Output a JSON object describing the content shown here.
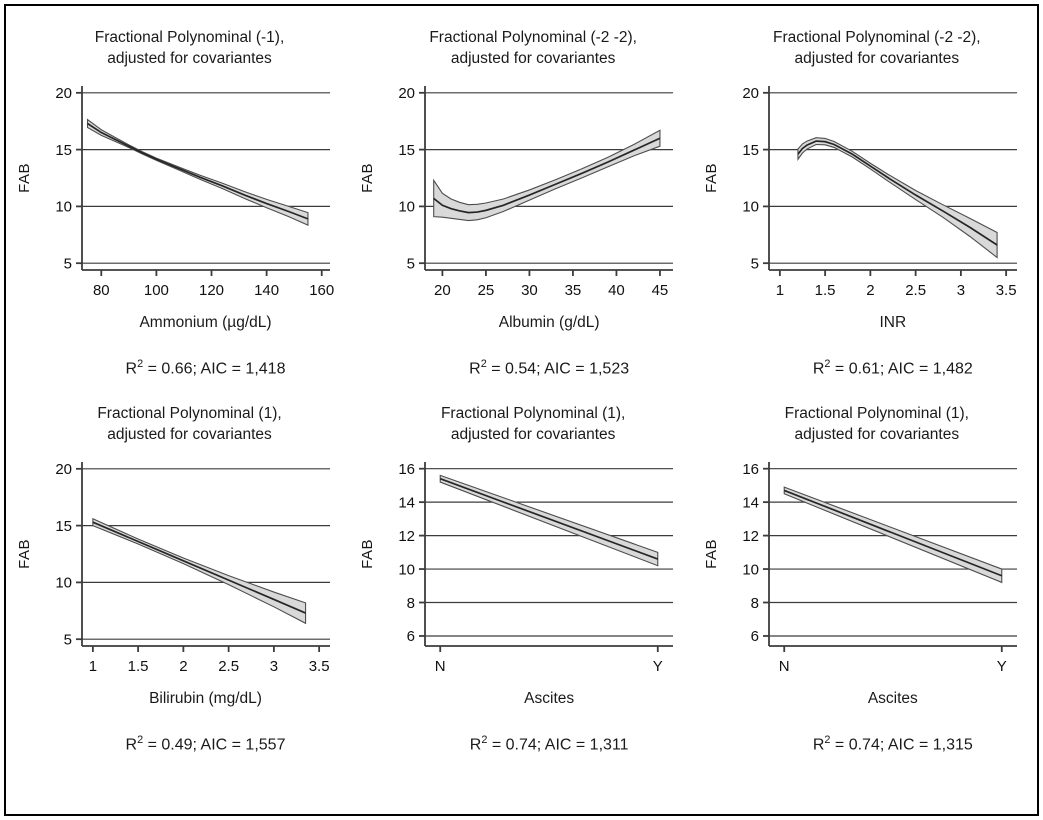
{
  "figure": {
    "background": "#ffffff",
    "frame_color": "#000000",
    "band_fill": "#d9d9d9",
    "band_edge": "#4d4d4d",
    "line_color": "#262626",
    "grid_color": "#3c3c3c",
    "text_color": "#111111"
  },
  "chart_data": [
    {
      "type": "area",
      "title": "Fractional Polynominal (-1), adjusted for covariantes",
      "title_line1": "Fractional Polynominal (-1),",
      "title_line2": "adjusted for covariantes",
      "ylabel": "FAB",
      "xlabel": "Ammonium (µg/dL)",
      "annotation": {
        "r": "R",
        "exp": "2",
        "rest": " = 0.66; AIC = 1,418"
      },
      "legend": "none",
      "grid": true,
      "xlim": [
        73,
        163
      ],
      "ylim": [
        4.4,
        20.6
      ],
      "xticks": [
        80,
        100,
        120,
        140,
        160
      ],
      "xtick_labels": [
        "80",
        "100",
        "120",
        "140",
        "160"
      ],
      "yticks": [
        5,
        10,
        15,
        20
      ],
      "band_fill": "#d9d9d9",
      "series": [
        {
          "name": "fit",
          "x": [
            75,
            80,
            85,
            90,
            95,
            100,
            108,
            116,
            124,
            132,
            140,
            148,
            155
          ],
          "y": [
            17.3,
            16.5,
            15.9,
            15.3,
            14.7,
            14.15,
            13.35,
            12.55,
            11.8,
            11.0,
            10.25,
            9.55,
            8.9
          ]
        },
        {
          "name": "ci_lower",
          "x": [
            75,
            80,
            85,
            90,
            95,
            100,
            108,
            116,
            124,
            132,
            140,
            148,
            155
          ],
          "y": [
            16.95,
            16.25,
            15.72,
            15.18,
            14.6,
            14.05,
            13.22,
            12.37,
            11.56,
            10.7,
            9.88,
            9.1,
            8.35
          ]
        },
        {
          "name": "ci_upper",
          "x": [
            75,
            80,
            85,
            90,
            95,
            100,
            108,
            116,
            124,
            132,
            140,
            148,
            155
          ],
          "y": [
            17.65,
            16.75,
            16.08,
            15.42,
            14.8,
            14.25,
            13.48,
            12.73,
            12.04,
            11.3,
            10.62,
            10.0,
            9.45
          ]
        }
      ]
    },
    {
      "type": "area",
      "title": "Fractional Polynominal (-2 -2), adjusted for covariantes",
      "title_line1": "Fractional Polynominal (-2 -2),",
      "title_line2": "adjusted for covariantes",
      "ylabel": "FAB",
      "xlabel": "Albumin (g/dL)",
      "annotation": {
        "r": "R",
        "exp": "2",
        "rest": " = 0.54; AIC = 1,523"
      },
      "legend": "none",
      "grid": true,
      "xlim": [
        18,
        46.5
      ],
      "ylim": [
        4.4,
        20.6
      ],
      "xticks": [
        20,
        25,
        30,
        35,
        40,
        45
      ],
      "xtick_labels": [
        "20",
        "25",
        "30",
        "35",
        "40",
        "45"
      ],
      "yticks": [
        5,
        10,
        15,
        20
      ],
      "band_fill": "#d9d9d9",
      "series": [
        {
          "name": "fit",
          "x": [
            19,
            20,
            21,
            22,
            23,
            24,
            25,
            27,
            30,
            33,
            36,
            39,
            42,
            45
          ],
          "y": [
            10.7,
            10.1,
            9.8,
            9.6,
            9.45,
            9.5,
            9.65,
            10.1,
            11.0,
            11.95,
            12.9,
            13.9,
            14.95,
            16.0
          ]
        },
        {
          "name": "ci_lower",
          "x": [
            19,
            20,
            21,
            22,
            23,
            24,
            25,
            27,
            30,
            33,
            36,
            39,
            42,
            45
          ],
          "y": [
            9.1,
            9.05,
            8.95,
            8.85,
            8.75,
            8.82,
            9.0,
            9.55,
            10.55,
            11.55,
            12.5,
            13.48,
            14.45,
            15.3
          ]
        },
        {
          "name": "ci_upper",
          "x": [
            19,
            20,
            21,
            22,
            23,
            24,
            25,
            27,
            30,
            33,
            36,
            39,
            42,
            45
          ],
          "y": [
            12.3,
            11.15,
            10.65,
            10.35,
            10.15,
            10.18,
            10.3,
            10.65,
            11.45,
            12.35,
            13.3,
            14.32,
            15.45,
            16.7
          ]
        }
      ]
    },
    {
      "type": "area",
      "title": "Fractional Polynominal (-2 -2), adjusted for covariantes",
      "title_line1": "Fractional Polynominal (-2 -2),",
      "title_line2": "adjusted for covariantes",
      "ylabel": "FAB",
      "xlabel": "INR",
      "annotation": {
        "r": "R",
        "exp": "2",
        "rest": " = 0.61; AIC = 1,482"
      },
      "legend": "none",
      "grid": true,
      "xlim": [
        0.88,
        3.62
      ],
      "ylim": [
        4.4,
        20.6
      ],
      "xticks": [
        1,
        1.5,
        2,
        2.5,
        3,
        3.5
      ],
      "xtick_labels": [
        "1",
        "1.5",
        "2",
        "2.5",
        "3",
        "3.5"
      ],
      "yticks": [
        5,
        10,
        15,
        20
      ],
      "band_fill": "#d9d9d9",
      "series": [
        {
          "name": "fit",
          "x": [
            1.2,
            1.25,
            1.3,
            1.4,
            1.5,
            1.6,
            1.8,
            2.0,
            2.2,
            2.5,
            2.8,
            3.1,
            3.4
          ],
          "y": [
            14.6,
            15.1,
            15.4,
            15.75,
            15.7,
            15.45,
            14.6,
            13.55,
            12.5,
            11.0,
            9.6,
            8.15,
            6.6
          ]
        },
        {
          "name": "ci_lower",
          "x": [
            1.2,
            1.25,
            1.3,
            1.4,
            1.5,
            1.6,
            1.8,
            2.0,
            2.2,
            2.5,
            2.8,
            3.1,
            3.4
          ],
          "y": [
            14.15,
            14.7,
            15.05,
            15.45,
            15.42,
            15.19,
            14.35,
            13.3,
            12.2,
            10.6,
            9.05,
            7.35,
            5.5
          ]
        },
        {
          "name": "ci_upper",
          "x": [
            1.2,
            1.25,
            1.3,
            1.4,
            1.5,
            1.6,
            1.8,
            2.0,
            2.2,
            2.5,
            2.8,
            3.1,
            3.4
          ],
          "y": [
            15.05,
            15.5,
            15.75,
            16.05,
            15.98,
            15.71,
            14.85,
            13.8,
            12.8,
            11.4,
            10.15,
            8.95,
            7.7
          ]
        }
      ]
    },
    {
      "type": "area",
      "title": "Fractional Polynominal (1), adjusted for covariantes",
      "title_line1": "Fractional Polynominal (1),",
      "title_line2": "adjusted for covariantes",
      "ylabel": "FAB",
      "xlabel": "Bilirubin (mg/dL)",
      "annotation": {
        "r": "R",
        "exp": "2",
        "rest": " = 0.49; AIC = 1,557"
      },
      "legend": "none",
      "grid": true,
      "xlim": [
        0.88,
        3.62
      ],
      "ylim": [
        4.4,
        20.6
      ],
      "xticks": [
        1,
        1.5,
        2,
        2.5,
        3,
        3.5
      ],
      "xtick_labels": [
        "1",
        "1.5",
        "2",
        "2.5",
        "3",
        "3.5"
      ],
      "yticks": [
        5,
        10,
        15,
        20
      ],
      "band_fill": "#d9d9d9",
      "series": [
        {
          "name": "fit",
          "x": [
            1.0,
            1.5,
            2.0,
            2.5,
            3.0,
            3.35
          ],
          "y": [
            15.3,
            13.6,
            11.9,
            10.2,
            8.5,
            7.3
          ]
        },
        {
          "name": "ci_lower",
          "x": [
            1.0,
            1.5,
            2.0,
            2.5,
            3.0,
            3.35
          ],
          "y": [
            15.0,
            13.38,
            11.65,
            9.8,
            7.85,
            6.4
          ]
        },
        {
          "name": "ci_upper",
          "x": [
            1.0,
            1.5,
            2.0,
            2.5,
            3.0,
            3.35
          ],
          "y": [
            15.6,
            13.82,
            12.15,
            10.6,
            9.15,
            8.2
          ]
        }
      ]
    },
    {
      "type": "area",
      "title": "Fractional Polynominal (1), adjusted for covariantes",
      "title_line1": "Fractional Polynominal (1),",
      "title_line2": "adjusted for covariantes",
      "ylabel": "FAB",
      "xlabel": "Ascites",
      "annotation": {
        "r": "R",
        "exp": "2",
        "rest": " = 0.74; AIC = 1,311"
      },
      "legend": "none",
      "grid": true,
      "xlim": [
        -0.07,
        1.07
      ],
      "ylim": [
        5.4,
        16.4
      ],
      "xticks": [
        0,
        1
      ],
      "xtick_labels": [
        "N",
        "Y"
      ],
      "yticks": [
        6,
        8,
        10,
        12,
        14,
        16
      ],
      "band_fill": "#d9d9d9",
      "series": [
        {
          "name": "fit",
          "x": [
            0,
            1
          ],
          "y": [
            15.4,
            10.6
          ]
        },
        {
          "name": "ci_lower",
          "x": [
            0,
            1
          ],
          "y": [
            15.2,
            10.2
          ]
        },
        {
          "name": "ci_upper",
          "x": [
            0,
            1
          ],
          "y": [
            15.6,
            11.0
          ]
        }
      ]
    },
    {
      "type": "area",
      "title": "Fractional Polynominal (1), adjusted for covariantes",
      "title_line1": "Fractional Polynominal (1),",
      "title_line2": "adjusted for covariantes",
      "ylabel": "FAB",
      "xlabel": "Ascites",
      "annotation": {
        "r": "R",
        "exp": "2",
        "rest": " = 0.74; AIC = 1,315"
      },
      "legend": "none",
      "grid": true,
      "xlim": [
        -0.07,
        1.07
      ],
      "ylim": [
        5.4,
        16.4
      ],
      "xticks": [
        0,
        1
      ],
      "xtick_labels": [
        "N",
        "Y"
      ],
      "yticks": [
        6,
        8,
        10,
        12,
        14,
        16
      ],
      "band_fill": "#d9d9d9",
      "series": [
        {
          "name": "fit",
          "x": [
            0,
            1
          ],
          "y": [
            14.7,
            9.6
          ]
        },
        {
          "name": "ci_lower",
          "x": [
            0,
            1
          ],
          "y": [
            14.5,
            9.2
          ]
        },
        {
          "name": "ci_upper",
          "x": [
            0,
            1
          ],
          "y": [
            14.9,
            10.0
          ]
        }
      ]
    }
  ]
}
